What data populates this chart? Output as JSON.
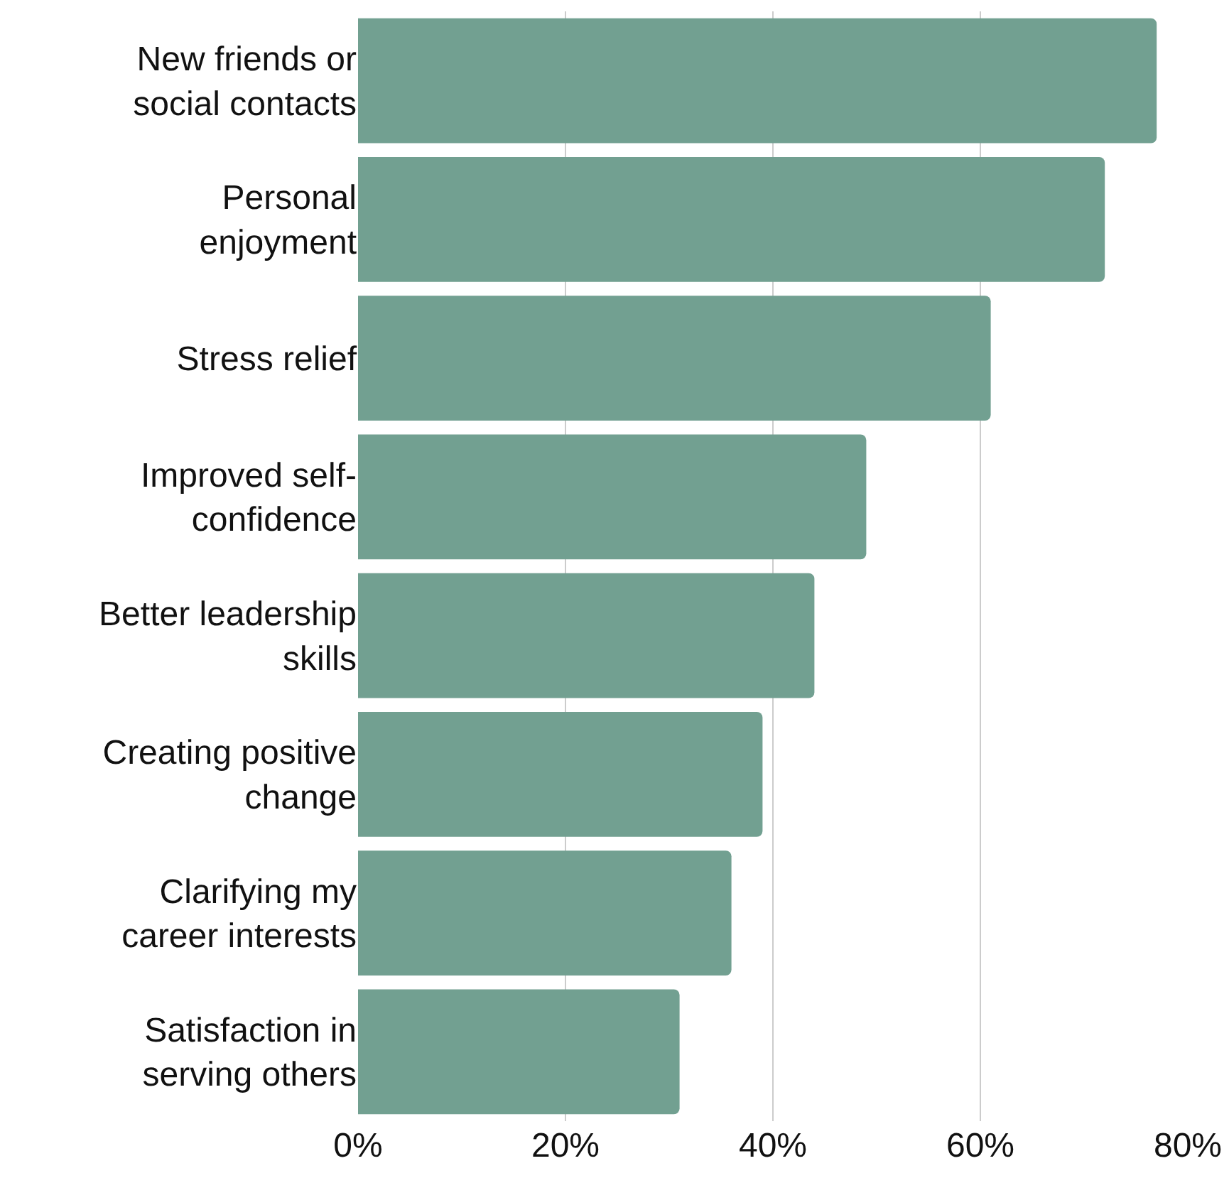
{
  "chart_data": {
    "type": "bar",
    "orientation": "horizontal",
    "categories": [
      "New friends or social contacts",
      "Personal enjoyment",
      "Stress relief",
      "Improved self-confidence",
      "Better leadership skills",
      "Creating positive change",
      "Clarifying my career interests",
      "Satisfaction in serving others"
    ],
    "values": [
      77,
      72,
      61,
      49,
      44,
      39,
      36,
      31
    ],
    "color": "#72a091",
    "xlim": [
      0,
      80
    ],
    "xticks": [
      {
        "value": 0,
        "label": "0%"
      },
      {
        "value": 20,
        "label": "20%"
      },
      {
        "value": 40,
        "label": "40%"
      },
      {
        "value": 60,
        "label": "60%"
      },
      {
        "value": 80,
        "label": "80%"
      }
    ],
    "grid": "x"
  }
}
